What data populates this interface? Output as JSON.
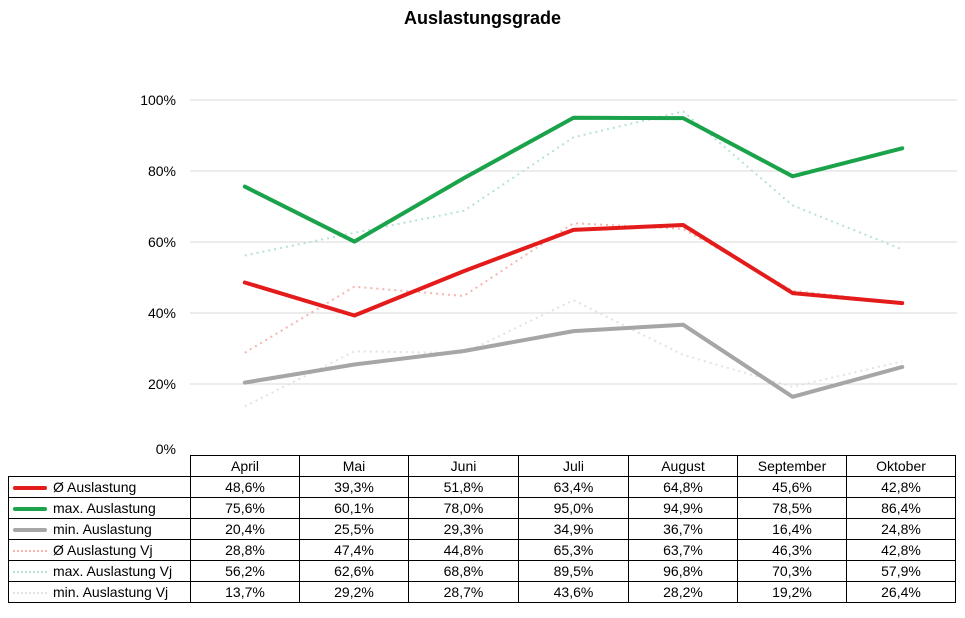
{
  "colors": {
    "avg": "#e31b1b",
    "max": "#1aa34a",
    "min": "#a6a6a6",
    "grid": "#d9d9d9"
  },
  "chart_data": {
    "type": "line",
    "title": "Auslastungsgrade",
    "categories": [
      "April",
      "Mai",
      "Juni",
      "Juli",
      "August",
      "September",
      "Oktober"
    ],
    "y_axis": {
      "min": 0,
      "max": 100,
      "step": 20,
      "unit": "%",
      "tick_labels": [
        "0%",
        "20%",
        "40%",
        "60%",
        "80%",
        "100%"
      ]
    },
    "grid": true,
    "legend": "data-table",
    "series": [
      {
        "name": "Ø Auslastung",
        "color": "#e31b1b",
        "style": "solid",
        "values": [
          48.6,
          39.3,
          51.8,
          63.4,
          64.8,
          45.6,
          42.8
        ],
        "labels": [
          "48,6%",
          "39,3%",
          "51,8%",
          "63,4%",
          "64,8%",
          "45,6%",
          "42,8%"
        ]
      },
      {
        "name": "max. Auslastung",
        "color": "#1aa34a",
        "style": "solid",
        "values": [
          75.6,
          60.1,
          78.0,
          95.0,
          94.9,
          78.5,
          86.4
        ],
        "labels": [
          "75,6%",
          "60,1%",
          "78,0%",
          "95,0%",
          "94,9%",
          "78,5%",
          "86,4%"
        ]
      },
      {
        "name": "min. Auslastung",
        "color": "#a6a6a6",
        "style": "solid",
        "values": [
          20.4,
          25.5,
          29.3,
          34.9,
          36.7,
          16.4,
          24.8
        ],
        "labels": [
          "20,4%",
          "25,5%",
          "29,3%",
          "34,9%",
          "36,7%",
          "16,4%",
          "24,8%"
        ]
      },
      {
        "name": "Ø Auslastung Vj",
        "color": "#f4b6ac",
        "style": "dotted",
        "values": [
          28.8,
          47.4,
          44.8,
          65.3,
          63.7,
          46.3,
          42.8
        ],
        "labels": [
          "28,8%",
          "47,4%",
          "44,8%",
          "65,3%",
          "63,7%",
          "46,3%",
          "42,8%"
        ]
      },
      {
        "name": "max. Auslastung Vj",
        "color": "#b6e2d0",
        "style": "dotted",
        "values": [
          56.2,
          62.6,
          68.8,
          89.5,
          96.8,
          70.3,
          57.9
        ],
        "labels": [
          "56,2%",
          "62,6%",
          "68,8%",
          "89,5%",
          "96,8%",
          "70,3%",
          "57,9%"
        ]
      },
      {
        "name": "min. Auslastung Vj",
        "color": "#e2e2e2",
        "style": "dotted",
        "values": [
          13.7,
          29.2,
          28.7,
          43.6,
          28.2,
          19.2,
          26.4
        ],
        "labels": [
          "13,7%",
          "29,2%",
          "28,7%",
          "43,6%",
          "28,2%",
          "19,2%",
          "26,4%"
        ]
      }
    ]
  }
}
